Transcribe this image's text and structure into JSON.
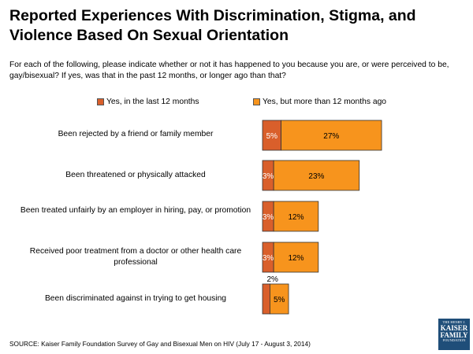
{
  "title": "Reported Experiences With Discrimination, Stigma, and Violence Based On Sexual Orientation",
  "subtitle": "For each of the following, please indicate whether or not it has happened to you because you are, or were perceived to be, gay/bisexual?  If yes, was that in the past 12 months, or longer ago than that?",
  "source": "SOURCE: Kaiser Family Foundation Survey of Gay and Bisexual Men on HIV (July 17 - August 3, 2014)",
  "logo": {
    "line1": "THE HENRY J.",
    "line2a": "KAISER",
    "line2b": "FAMILY",
    "line3": "FOUNDATION"
  },
  "chart_data": {
    "type": "bar",
    "orientation": "horizontal",
    "stacked": true,
    "categories": [
      "Been rejected by a friend or family member",
      "Been threatened or physically attacked",
      "Been treated unfairly by an employer in hiring, pay, or promotion",
      "Received poor treatment from a doctor or other health care professional",
      "Been discriminated against in trying to get housing"
    ],
    "series": [
      {
        "name": "Yes, in the last 12 months",
        "color": "#d95f2b",
        "values": [
          5,
          3,
          3,
          3,
          2
        ],
        "labels": [
          "5%",
          "3%",
          "3%",
          "3%",
          "2%"
        ]
      },
      {
        "name": "Yes, but more than 12 months ago",
        "color": "#f7941d",
        "values": [
          27,
          23,
          12,
          12,
          5
        ],
        "labels": [
          "27%",
          "23%",
          "12%",
          "12%",
          "5%"
        ]
      }
    ],
    "xlim": [
      0,
      100
    ],
    "legend": "top",
    "grid": false
  }
}
